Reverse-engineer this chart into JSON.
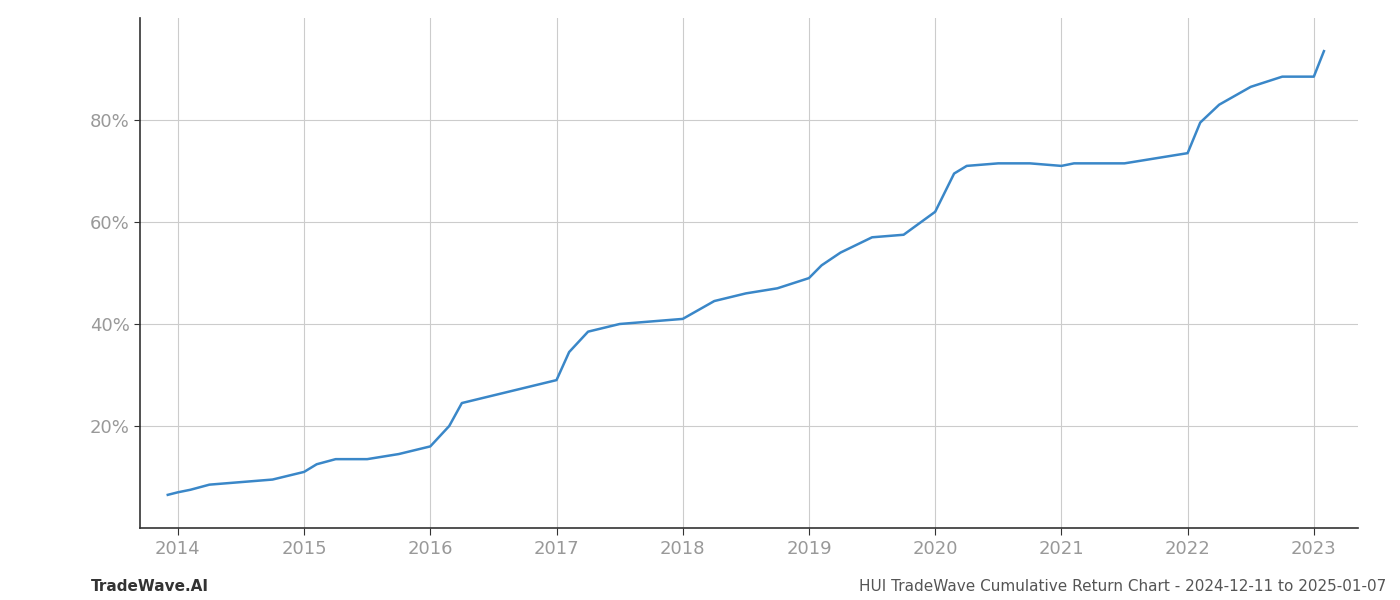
{
  "x_values": [
    2013.92,
    2014.0,
    2014.1,
    2014.25,
    2014.5,
    2014.75,
    2015.0,
    2015.1,
    2015.25,
    2015.5,
    2015.75,
    2016.0,
    2016.15,
    2016.25,
    2016.5,
    2016.75,
    2017.0,
    2017.1,
    2017.25,
    2017.5,
    2017.75,
    2018.0,
    2018.25,
    2018.5,
    2018.75,
    2019.0,
    2019.1,
    2019.25,
    2019.5,
    2019.75,
    2020.0,
    2020.08,
    2020.15,
    2020.25,
    2020.5,
    2020.75,
    2021.0,
    2021.1,
    2021.25,
    2021.5,
    2021.75,
    2022.0,
    2022.1,
    2022.25,
    2022.5,
    2022.75,
    2023.0,
    2023.08
  ],
  "y_values": [
    6.5,
    7.0,
    7.5,
    8.5,
    9.0,
    9.5,
    11.0,
    12.5,
    13.5,
    13.5,
    14.5,
    16.0,
    20.0,
    24.5,
    26.0,
    27.5,
    29.0,
    34.5,
    38.5,
    40.0,
    40.5,
    41.0,
    44.5,
    46.0,
    47.0,
    49.0,
    51.5,
    54.0,
    57.0,
    57.5,
    62.0,
    66.0,
    69.5,
    71.0,
    71.5,
    71.5,
    71.0,
    71.5,
    71.5,
    71.5,
    72.5,
    73.5,
    79.5,
    83.0,
    86.5,
    88.5,
    88.5,
    93.5
  ],
  "line_color": "#3a87c8",
  "line_width": 1.8,
  "background_color": "#ffffff",
  "grid_color": "#cccccc",
  "x_tick_labels": [
    "2014",
    "2015",
    "2016",
    "2017",
    "2018",
    "2019",
    "2020",
    "2021",
    "2022",
    "2023"
  ],
  "x_tick_positions": [
    2014,
    2015,
    2016,
    2017,
    2018,
    2019,
    2020,
    2021,
    2022,
    2023
  ],
  "y_tick_labels": [
    "20%",
    "40%",
    "60%",
    "80%"
  ],
  "y_tick_positions": [
    20,
    40,
    60,
    80
  ],
  "xlim": [
    2013.7,
    2023.35
  ],
  "ylim": [
    0,
    100
  ],
  "footer_left": "TradeWave.AI",
  "footer_right": "HUI TradeWave Cumulative Return Chart - 2024-12-11 to 2025-01-07",
  "footer_fontsize": 11,
  "tick_label_color": "#999999",
  "spine_color": "#333333",
  "left_spine_color": "#333333"
}
